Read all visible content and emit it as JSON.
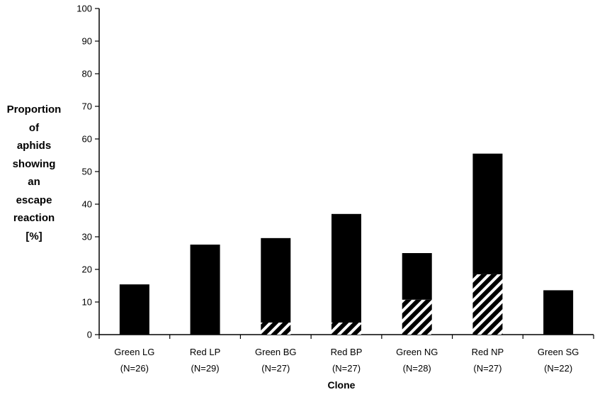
{
  "chart_data": {
    "type": "bar",
    "stacked": true,
    "categories": [
      [
        "Green LG",
        "(N=26)"
      ],
      [
        "Red LP",
        "(N=29)"
      ],
      [
        "Green BG",
        "(N=27)"
      ],
      [
        "Red BP",
        "(N=27)"
      ],
      [
        "Green NG",
        "(N=28)"
      ],
      [
        "Red NP",
        "(N=27)"
      ],
      [
        "Green SG",
        "(N=22)"
      ]
    ],
    "series": [
      {
        "fill": "hatched",
        "values": [
          0,
          0,
          3.7,
          3.7,
          10.7,
          18.5,
          0
        ]
      },
      {
        "fill": "solid",
        "values": [
          15.4,
          27.6,
          25.9,
          33.3,
          14.3,
          37.0,
          13.6
        ]
      }
    ],
    "totals": [
      15.4,
      27.6,
      29.6,
      37.0,
      25.0,
      55.5,
      13.6
    ],
    "ylabel_lines": [
      "Proportion",
      "of",
      "aphids",
      "showing",
      "an",
      "escape",
      "reaction",
      "[%]"
    ],
    "xlabel": "Clone",
    "ylim": [
      0,
      100
    ],
    "yticks": [
      0,
      10,
      20,
      30,
      40,
      50,
      60,
      70,
      80,
      90,
      100
    ],
    "grid": false,
    "legend": "none",
    "colors": {
      "solid": "#000000",
      "hatch_stripe": "#ffffff",
      "axis": "#000000"
    }
  }
}
